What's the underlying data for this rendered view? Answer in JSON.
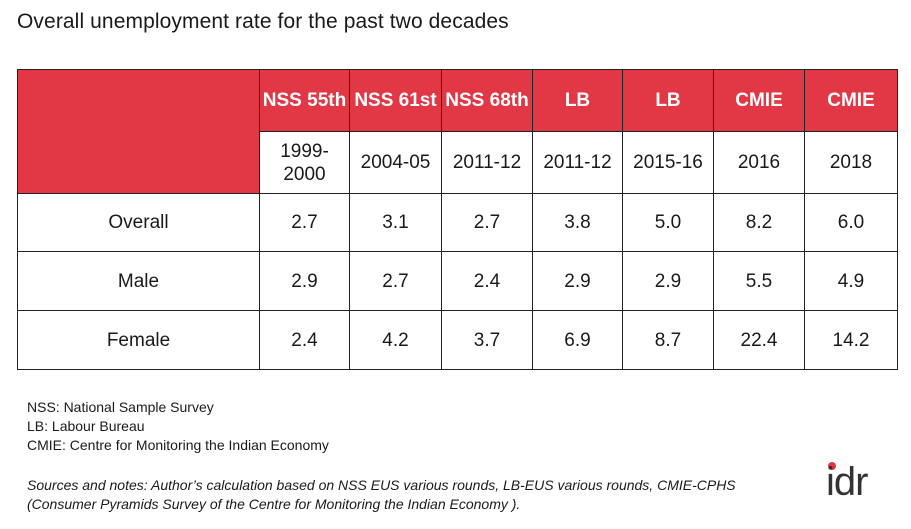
{
  "title": "Overall unemployment rate for the past two decades",
  "table": {
    "headers": [
      {
        "source": "NSS 55th",
        "period": "1999-2000"
      },
      {
        "source": "NSS 61st",
        "period": "2004-05"
      },
      {
        "source": "NSS 68th",
        "period": "2011-12"
      },
      {
        "source": "LB",
        "period": "2011-12"
      },
      {
        "source": "LB",
        "period": "2015-16"
      },
      {
        "source": "CMIE",
        "period": "2016"
      },
      {
        "source": "CMIE",
        "period": "2018"
      }
    ],
    "rows": [
      {
        "label": "Overall",
        "values": [
          "2.7",
          "3.1",
          "2.7",
          "3.8",
          "5.0",
          "8.2",
          "6.0"
        ]
      },
      {
        "label": "Male",
        "values": [
          "2.9",
          "2.7",
          "2.4",
          "2.9",
          "2.9",
          "5.5",
          "4.9"
        ]
      },
      {
        "label": "Female",
        "values": [
          "2.4",
          "4.2",
          "3.7",
          "6.9",
          "8.7",
          "22.4",
          "14.2"
        ]
      }
    ]
  },
  "notes": [
    "NSS: National Sample Survey",
    "LB: Labour Bureau",
    "CMIE: Centre for Monitoring the Indian Economy"
  ],
  "source": "Sources and notes: Author’s calculation based on NSS EUS various rounds, LB-EUS various rounds, CMIE-CPHS (Consumer Pyramids Survey of the Centre for Monitoring the Indian Economy ).",
  "logo": "idr",
  "colors": {
    "accent": "#e23744",
    "text": "#1a1a1a"
  }
}
